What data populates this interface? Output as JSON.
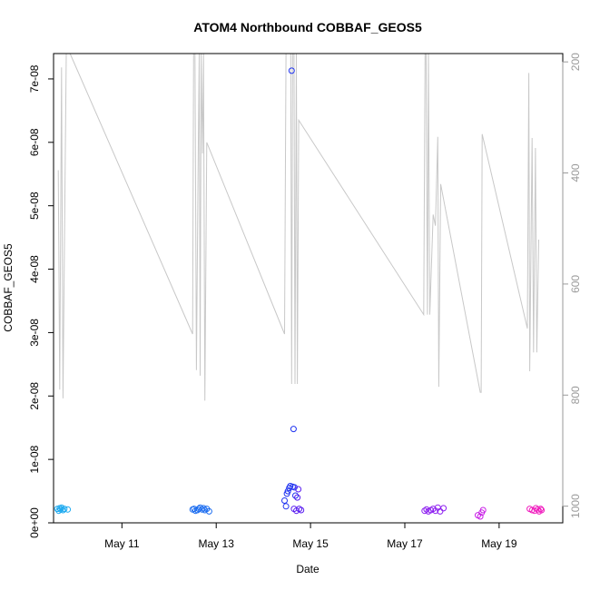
{
  "chart_data": {
    "type": "scatter",
    "title": "ATOM4 Northbound COBBAF_GEOS5",
    "xlabel": "Date",
    "ylabel": "COBBAF_GEOS5",
    "x_unit": "day of May (fractional)",
    "xlim": [
      9.55,
      20.35
    ],
    "ylim": [
      0,
      7.4e-08
    ],
    "x_ticks": [
      {
        "value": 11,
        "label": "May 11"
      },
      {
        "value": 13,
        "label": "May 13"
      },
      {
        "value": 15,
        "label": "May 15"
      },
      {
        "value": 17,
        "label": "May 17"
      },
      {
        "value": 19,
        "label": "May 19"
      }
    ],
    "y_ticks": [
      {
        "value": 0,
        "label": "0e+00"
      },
      {
        "value": 1e-08,
        "label": "1e-08"
      },
      {
        "value": 2e-08,
        "label": "2e-08"
      },
      {
        "value": 3e-08,
        "label": "3e-08"
      },
      {
        "value": 4e-08,
        "label": "4e-08"
      },
      {
        "value": 5e-08,
        "label": "5e-08"
      },
      {
        "value": 6e-08,
        "label": "6e-08"
      },
      {
        "value": 7e-08,
        "label": "7e-08"
      }
    ],
    "y2_reversed": true,
    "y2lim": [
      1030,
      185
    ],
    "y2_ticks": [
      {
        "value": 200,
        "label": "200"
      },
      {
        "value": 400,
        "label": "400"
      },
      {
        "value": 600,
        "label": "600"
      },
      {
        "value": 800,
        "label": "800"
      },
      {
        "value": 1000,
        "label": "1000"
      }
    ],
    "pressure_series": {
      "color": "#c8c8c8",
      "points": [
        [
          9.65,
          395
        ],
        [
          9.68,
          790
        ],
        [
          9.72,
          210
        ],
        [
          9.75,
          806
        ],
        [
          9.82,
          185
        ],
        [
          9.9,
          185
        ],
        [
          12.5,
          690
        ],
        [
          12.52,
          185
        ],
        [
          12.55,
          185
        ],
        [
          12.58,
          755
        ],
        [
          12.62,
          345
        ],
        [
          12.64,
          185
        ],
        [
          12.66,
          765
        ],
        [
          12.68,
          185
        ],
        [
          12.71,
          365
        ],
        [
          12.73,
          185
        ],
        [
          12.76,
          810
        ],
        [
          12.8,
          345
        ],
        [
          14.45,
          690
        ],
        [
          14.48,
          185
        ],
        [
          14.5,
          185
        ],
        [
          14.52,
          185
        ],
        [
          14.55,
          185
        ],
        [
          14.58,
          185
        ],
        [
          14.6,
          780
        ],
        [
          14.62,
          185
        ],
        [
          14.65,
          185
        ],
        [
          14.67,
          780
        ],
        [
          14.7,
          185
        ],
        [
          14.72,
          780
        ],
        [
          14.75,
          305
        ],
        [
          17.4,
          655
        ],
        [
          17.43,
          185
        ],
        [
          17.45,
          185
        ],
        [
          17.48,
          655
        ],
        [
          17.5,
          185
        ],
        [
          17.53,
          655
        ],
        [
          17.6,
          475
        ],
        [
          17.65,
          495
        ],
        [
          17.7,
          335
        ],
        [
          17.72,
          785
        ],
        [
          17.76,
          420
        ],
        [
          18.6,
          795
        ],
        [
          18.62,
          795
        ],
        [
          18.64,
          330
        ],
        [
          19.6,
          680
        ],
        [
          19.63,
          220
        ],
        [
          19.65,
          757
        ],
        [
          19.7,
          337
        ],
        [
          19.73,
          723
        ],
        [
          19.77,
          355
        ],
        [
          19.8,
          723
        ],
        [
          19.84,
          520
        ]
      ]
    },
    "series": [
      {
        "color": "#1eaaf0",
        "points": [
          [
            9.63,
            2.2e-09
          ],
          [
            9.66,
            1.9e-09
          ],
          [
            9.68,
            2.3e-09
          ],
          [
            9.7,
            2.1e-09
          ],
          [
            9.72,
            2.4e-09
          ],
          [
            9.75,
            2e-09
          ],
          [
            9.78,
            2.2e-09
          ],
          [
            9.85,
            2.1e-09
          ]
        ]
      },
      {
        "color": "#1e6ef0",
        "points": [
          [
            12.5,
            2.1e-09
          ],
          [
            12.53,
            2.2e-09
          ],
          [
            12.56,
            1.9e-09
          ],
          [
            12.6,
            2e-09
          ],
          [
            12.63,
            2.2e-09
          ],
          [
            12.66,
            2.4e-09
          ],
          [
            12.7,
            2.1e-09
          ],
          [
            12.73,
            2.3e-09
          ],
          [
            12.76,
            2e-09
          ],
          [
            12.8,
            2.2e-09
          ],
          [
            12.85,
            1.8e-09
          ]
        ]
      },
      {
        "color": "#1e32f0",
        "points": [
          [
            14.45,
            3.5e-09
          ],
          [
            14.48,
            2.6e-09
          ],
          [
            14.5,
            4.6e-09
          ],
          [
            14.52,
            5e-09
          ],
          [
            14.55,
            5.5e-09
          ],
          [
            14.57,
            5.8e-09
          ],
          [
            14.6,
            7.13e-08
          ],
          [
            14.62,
            5.7e-09
          ],
          [
            14.64,
            1.48e-08
          ],
          [
            14.66,
            5.6e-09
          ],
          [
            14.68,
            4.3e-09
          ]
        ]
      },
      {
        "color": "#5a1ef0",
        "points": [
          [
            14.65,
            2.2e-09
          ],
          [
            14.7,
            1.9e-09
          ],
          [
            14.72,
            4e-09
          ],
          [
            14.74,
            5.3e-09
          ],
          [
            14.76,
            2.2e-09
          ],
          [
            14.8,
            2e-09
          ]
        ]
      },
      {
        "color": "#8c1ef0",
        "points": [
          [
            17.42,
            1.9e-09
          ],
          [
            17.46,
            2.1e-09
          ],
          [
            17.5,
            1.8e-09
          ],
          [
            17.55,
            2e-09
          ],
          [
            17.6,
            2.2e-09
          ],
          [
            17.65,
            1.9e-09
          ],
          [
            17.7,
            2.4e-09
          ],
          [
            17.75,
            1.8e-09
          ],
          [
            17.82,
            2.3e-09
          ]
        ]
      },
      {
        "color": "#c81ee6",
        "points": [
          [
            18.55,
            1.2e-09
          ],
          [
            18.6,
            1e-09
          ],
          [
            18.63,
            1.6e-09
          ],
          [
            18.66,
            2e-09
          ]
        ]
      },
      {
        "color": "#f01ebe",
        "points": [
          [
            19.65,
            2.2e-09
          ],
          [
            19.7,
            2e-09
          ],
          [
            19.75,
            1.9e-09
          ],
          [
            19.78,
            2.3e-09
          ],
          [
            19.82,
            2.1e-09
          ],
          [
            19.85,
            1.8e-09
          ],
          [
            19.88,
            2.2e-09
          ],
          [
            19.9,
            2e-09
          ]
        ]
      }
    ]
  }
}
